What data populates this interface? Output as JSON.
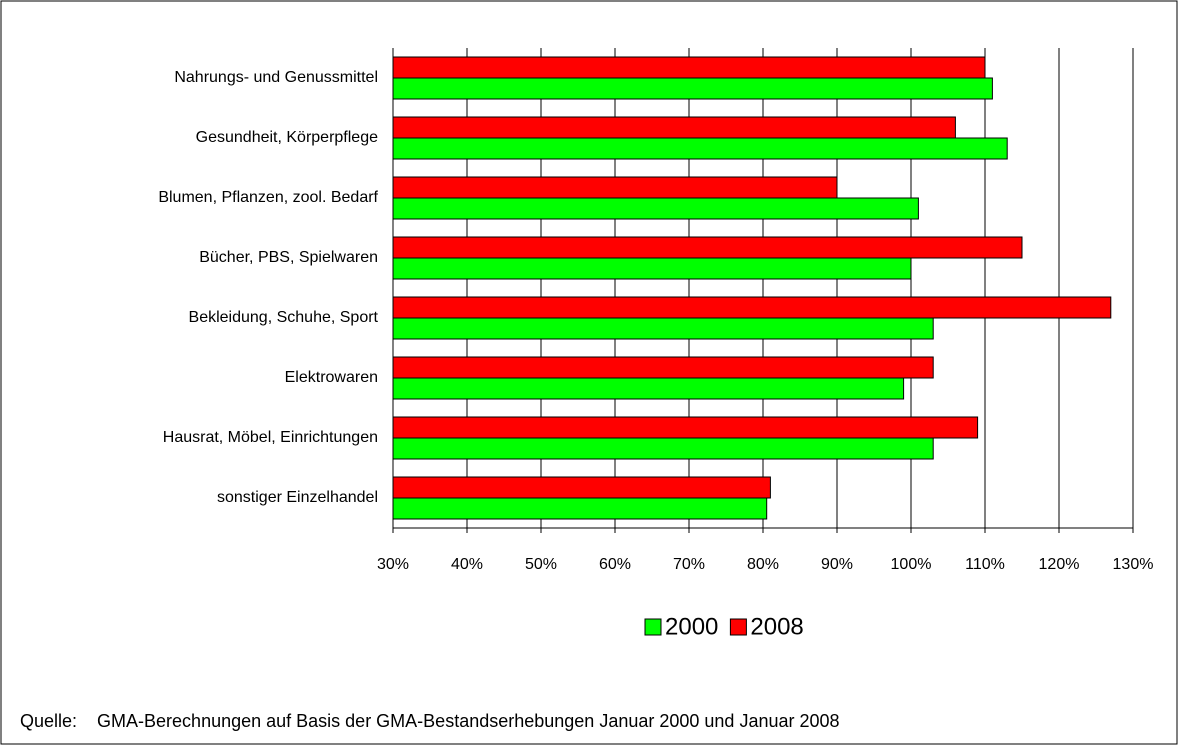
{
  "chart_data": {
    "type": "bar",
    "orientation": "horizontal",
    "categories": [
      "Nahrungs- und Genussmittel",
      "Gesundheit, Körperpflege",
      "Blumen, Pflanzen, zool. Bedarf",
      "Bücher, PBS, Spielwaren",
      "Bekleidung, Schuhe, Sport",
      "Elektrowaren",
      "Hausrat, Möbel, Einrichtungen",
      "sonstiger Einzelhandel"
    ],
    "series": [
      {
        "name": "2000",
        "color": "#00ff00",
        "values": [
          111,
          113,
          101,
          100,
          103,
          99,
          103,
          80.5
        ]
      },
      {
        "name": "2008",
        "color": "#ff0000",
        "values": [
          110,
          106,
          90,
          115,
          127,
          103,
          109,
          81
        ]
      }
    ],
    "xlim": [
      30,
      130
    ],
    "xticks": [
      {
        "value": 30,
        "label": "30%"
      },
      {
        "value": 40,
        "label": "40%"
      },
      {
        "value": 50,
        "label": "50%"
      },
      {
        "value": 60,
        "label": "60%"
      },
      {
        "value": 70,
        "label": "70%"
      },
      {
        "value": 80,
        "label": "80%"
      },
      {
        "value": 90,
        "label": "90%"
      },
      {
        "value": 100,
        "label": "100%"
      },
      {
        "value": 110,
        "label": "110%"
      },
      {
        "value": 120,
        "label": "120%"
      },
      {
        "value": 130,
        "label": "130%"
      }
    ],
    "grid": true,
    "legend": "bottom",
    "source": "Quelle:    GMA-Berechnungen auf Basis der GMA-Bestandserhebungen Januar 2000 und Januar 2008"
  }
}
